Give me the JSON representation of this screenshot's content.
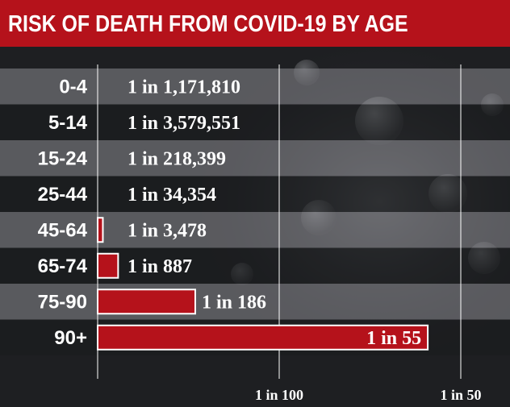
{
  "header": {
    "title": "RISK OF DEATH FROM COVID-19 BY AGE"
  },
  "colors": {
    "accent": "#b5121b",
    "bar": "#b5121b",
    "bar_border": "#ffffff",
    "text": "#ffffff"
  },
  "chart_data": {
    "type": "bar",
    "orientation": "horizontal",
    "title": "RISK OF DEATH FROM COVID-19 BY AGE",
    "categories": [
      "0-4",
      "5-14",
      "15-24",
      "25-44",
      "45-64",
      "65-74",
      "75-90",
      "90+"
    ],
    "value_labels": [
      "1 in 1,171,810",
      "1 in 3,579,551",
      "1 in 218,399",
      "1 in 34,354",
      "1 in 3,478",
      "1 in 887",
      "1 in 186",
      "1 in 55"
    ],
    "one_in": [
      1171810,
      3579551,
      218399,
      34354,
      3478,
      887,
      186,
      55
    ],
    "x_ticks": [
      {
        "label": "1 in 100",
        "one_in": 100
      },
      {
        "label": "1 in 50",
        "one_in": 50
      }
    ],
    "x_scale": "risk (1 / one_in), linear",
    "xlim_risk": [
      0,
      0.02
    ],
    "grid": true,
    "legend": "none"
  }
}
